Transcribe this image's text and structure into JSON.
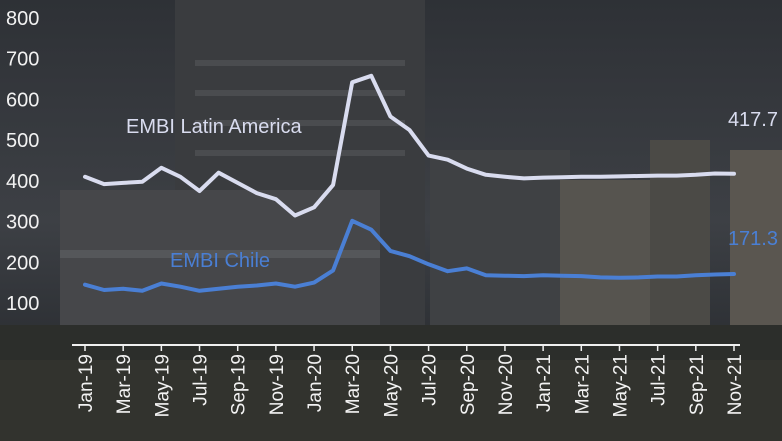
{
  "chart_data": {
    "type": "line",
    "title": "",
    "xlabel": "",
    "ylabel": "",
    "ylim": [
      50,
      800
    ],
    "y_ticks": [
      100,
      200,
      300,
      400,
      500,
      600,
      700,
      800
    ],
    "x": [
      "Jan-19",
      "Feb-19",
      "Mar-19",
      "Apr-19",
      "May-19",
      "Jun-19",
      "Jul-19",
      "Aug-19",
      "Sep-19",
      "Oct-19",
      "Nov-19",
      "Dec-19",
      "Jan-20",
      "Feb-20",
      "Mar-20",
      "Apr-20",
      "May-20",
      "Jun-20",
      "Jul-20",
      "Aug-20",
      "Sep-20",
      "Oct-20",
      "Nov-20",
      "Dec-20",
      "Jan-21",
      "Feb-21",
      "Mar-21",
      "Apr-21",
      "May-21",
      "Jun-21",
      "Jul-21",
      "Aug-21",
      "Sep-21",
      "Oct-21",
      "Nov-21"
    ],
    "x_tick_labels": [
      "Jan-19",
      "Mar-19",
      "May-19",
      "Jul-19",
      "Sep-19",
      "Nov-19",
      "Jan-20",
      "Mar-20",
      "May-20",
      "Jul-20",
      "Sep-20",
      "Nov-20",
      "Jan-21",
      "Mar-21",
      "May-21",
      "Jul-21",
      "Sep-21",
      "Nov-21"
    ],
    "grid": false,
    "series": [
      {
        "name": "EMBI Latin America",
        "color": "#d9dcef",
        "end_label": "417.7",
        "values": [
          410,
          392,
          395,
          398,
          432,
          410,
          375,
          420,
          395,
          370,
          355,
          315,
          335,
          390,
          642,
          658,
          558,
          525,
          462,
          452,
          430,
          415,
          410,
          406,
          408,
          409,
          410,
          410,
          411,
          412,
          413,
          413,
          415,
          418,
          417.7
        ]
      },
      {
        "name": "EMBI Chile",
        "color": "#4a7fd4",
        "end_label": "171.3",
        "values": [
          145,
          132,
          135,
          130,
          148,
          140,
          130,
          135,
          140,
          143,
          148,
          140,
          150,
          180,
          302,
          280,
          228,
          215,
          195,
          178,
          185,
          168,
          167,
          166,
          168,
          167,
          166,
          163,
          162,
          163,
          165,
          165,
          168,
          170,
          171.3
        ]
      }
    ]
  }
}
